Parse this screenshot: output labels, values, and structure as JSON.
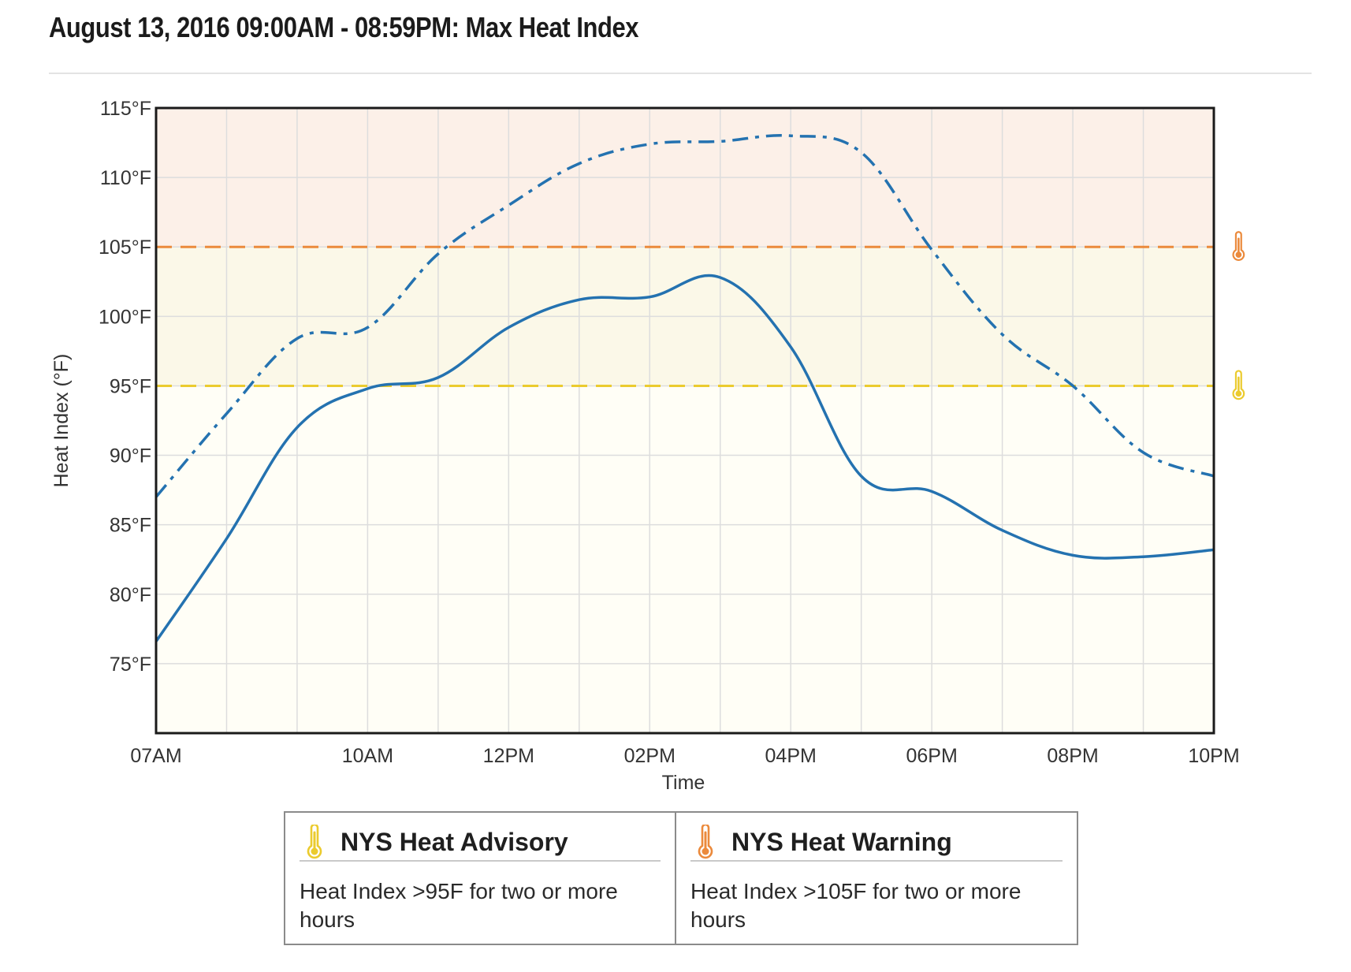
{
  "title": "August 13, 2016 09:00AM - 08:59PM: Max Heat Index",
  "colors": {
    "line": "#2472b0",
    "advisory": "#ebcb2e",
    "warning": "#eb8a3c",
    "zone_advisory": "#fbf8e8",
    "zone_warning": "#fcf0e8",
    "zone_base": "#fffef6"
  },
  "chart_data": {
    "type": "line",
    "xlabel": "Time",
    "ylabel": "Heat Index (°F)",
    "x": [
      "07AM",
      "08AM",
      "09AM",
      "10AM",
      "11AM",
      "12PM",
      "01PM",
      "02PM",
      "03PM",
      "04PM",
      "05PM",
      "06PM",
      "07PM",
      "08PM",
      "09PM",
      "10PM"
    ],
    "x_tick_labels": [
      {
        "index": 0,
        "label": "07AM"
      },
      {
        "index": 3,
        "label": "10AM"
      },
      {
        "index": 5,
        "label": "12PM"
      },
      {
        "index": 7,
        "label": "02PM"
      },
      {
        "index": 9,
        "label": "04PM"
      },
      {
        "index": 11,
        "label": "06PM"
      },
      {
        "index": 13,
        "label": "08PM"
      },
      {
        "index": 15,
        "label": "10PM"
      }
    ],
    "y_ticks": [
      "75°F",
      "80°F",
      "85°F",
      "90°F",
      "95°F",
      "100°F",
      "105°F",
      "110°F",
      "115°F"
    ],
    "y_tick_values": [
      75,
      80,
      85,
      90,
      95,
      100,
      105,
      110,
      115
    ],
    "ylim": [
      70,
      115
    ],
    "grid": true,
    "series": [
      {
        "style": "dashdot",
        "values": [
          87,
          93,
          98.4,
          99.2,
          104.5,
          108,
          111,
          112.4,
          112.6,
          113,
          111.8,
          104.8,
          98.7,
          95,
          90.2,
          88.5
        ]
      },
      {
        "style": "solid",
        "values": [
          76.6,
          84,
          92,
          94.8,
          95.6,
          99.2,
          101.2,
          101.4,
          102.8,
          97.8,
          88.5,
          87.4,
          84.6,
          82.8,
          82.7,
          83.2
        ]
      }
    ],
    "thresholds": [
      {
        "value": 95,
        "level": "advisory"
      },
      {
        "value": 105,
        "level": "warning"
      }
    ]
  },
  "legend": [
    {
      "title": "NYS Heat Advisory",
      "description": "Heat Index >95F for two or more hours",
      "icon": "thermometer-icon",
      "level": "advisory"
    },
    {
      "title": "NYS Heat Warning",
      "description": "Heat Index >105F for two or more hours",
      "icon": "thermometer-icon",
      "level": "warning"
    }
  ]
}
